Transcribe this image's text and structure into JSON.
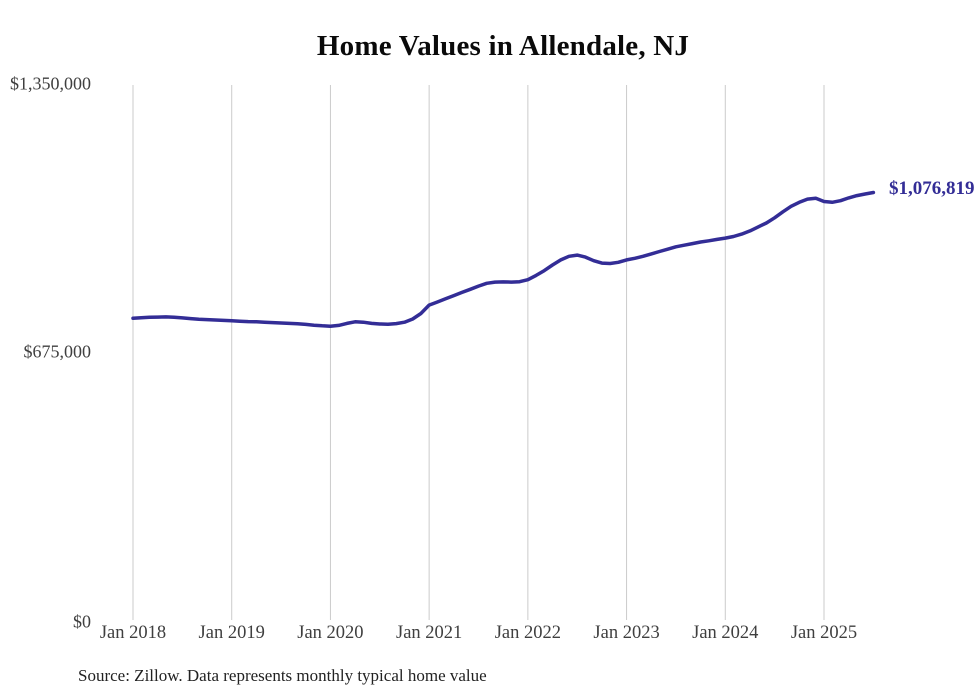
{
  "colors": {
    "line": "#332d96",
    "grid": "#cbcbcb",
    "title": "#0a0a0a",
    "axis_text": "#3f3f3f"
  },
  "source_note": "Source: Zillow. Data represents monthly typical home value",
  "chart_data": {
    "type": "line",
    "title": "Home Values in Allendale, NJ",
    "xlabel": "",
    "ylabel": "",
    "ylim": [
      0,
      1350000
    ],
    "grid": "vertical-only",
    "legend": "none",
    "x_start_month": "2018-01",
    "x_end_month": "2025-07",
    "x_tick_labels": [
      "Jan 2018",
      "Jan 2019",
      "Jan 2020",
      "Jan 2021",
      "Jan 2022",
      "Jan 2023",
      "Jan 2024",
      "Jan 2025"
    ],
    "y_tick_labels": [
      "$1,350,000",
      "$675,000",
      "$0"
    ],
    "y_tick_values": [
      1350000,
      675000,
      0
    ],
    "end_label": "$1,076,819",
    "end_value": 1076819,
    "series": [
      {
        "name": "Typical home value (monthly)",
        "values": [
          760000,
          761500,
          762500,
          763000,
          763500,
          762500,
          761000,
          759000,
          757500,
          756500,
          755500,
          754500,
          753500,
          752500,
          751500,
          751000,
          750000,
          749000,
          748000,
          747000,
          746000,
          744500,
          742500,
          741000,
          740000,
          742000,
          747000,
          751000,
          750000,
          747000,
          745500,
          745000,
          746500,
          750000,
          758000,
          772000,
          793000,
          801000,
          809000,
          817000,
          825000,
          833000,
          841000,
          848000,
          851000,
          851500,
          851000,
          852000,
          857000,
          868000,
          880000,
          894000,
          907000,
          916000,
          919000,
          914000,
          905000,
          899000,
          898000,
          901000,
          907000,
          911000,
          916000,
          922000,
          928000,
          934000,
          940000,
          944000,
          948000,
          952000,
          955000,
          958500,
          962000,
          966000,
          972000,
          980000,
          990000,
          1000000,
          1013000,
          1028000,
          1042000,
          1052000,
          1060000,
          1062000,
          1054000,
          1052000,
          1056000,
          1063000,
          1069000,
          1073000,
          1076819
        ]
      }
    ]
  }
}
